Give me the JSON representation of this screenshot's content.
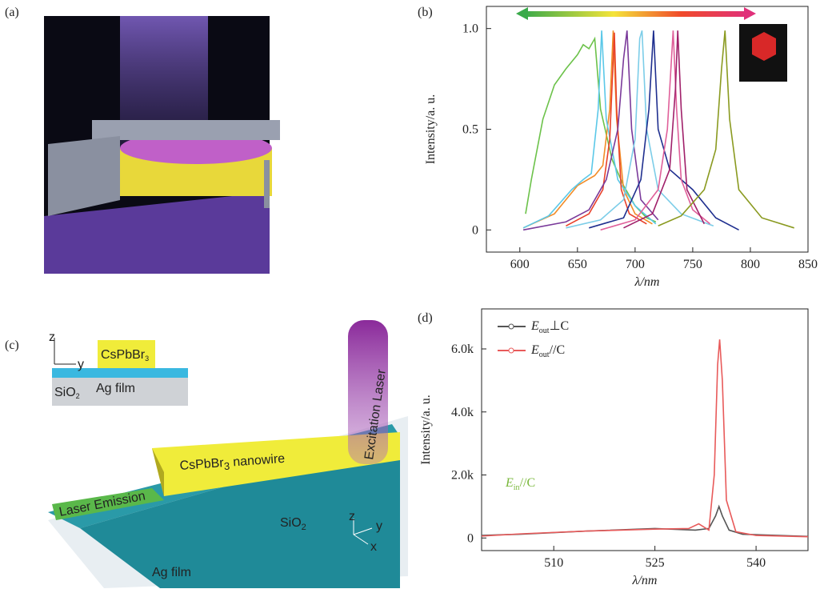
{
  "panel_labels": [
    "(a)",
    "(b)",
    "(c)",
    "(d)"
  ],
  "diagram_c": {
    "inset_material": [
      "CsPbBr",
      "3"
    ],
    "inset_axis_z": "z",
    "inset_axis_y": "y",
    "inset_sio2": [
      "SiO",
      "2"
    ],
    "inset_ag": "Ag film",
    "nanowire": [
      "CsPbBr",
      "3",
      " nanowire"
    ],
    "excitation": "Excitation Laser",
    "emission": "Laser Emission",
    "sio2": [
      "SiO",
      "2"
    ],
    "ag": "Ag film",
    "axis_z": "z",
    "axis_y": "y",
    "axis_x": "x"
  },
  "chart_data": [
    {
      "type": "line",
      "x_label": "λ/nm",
      "y_label": "Intensity/a. u.",
      "xlim": [
        571,
        850
      ],
      "ylim": [
        -0.11,
        1.11
      ],
      "xticks": [
        600,
        650,
        700,
        750,
        800,
        850
      ],
      "yticks": [
        0,
        0.5,
        {
          "value": 1,
          "label": "1.0"
        }
      ],
      "series": [
        {
          "color": "#6cc24a",
          "x": [
            605,
            610,
            620,
            630,
            640,
            650,
            655,
            660,
            665,
            670,
            680,
            690,
            700,
            710,
            718
          ],
          "values": [
            0.08,
            0.25,
            0.55,
            0.72,
            0.8,
            0.87,
            0.92,
            0.9,
            0.95,
            0.6,
            0.35,
            0.22,
            0.12,
            0.06,
            0.04
          ]
        },
        {
          "color": "#f28c28",
          "x": [
            603,
            630,
            650,
            665,
            672,
            678,
            681,
            684,
            690,
            700,
            715
          ],
          "values": [
            0.01,
            0.08,
            0.22,
            0.27,
            0.32,
            0.6,
            0.99,
            0.55,
            0.2,
            0.08,
            0.03
          ]
        },
        {
          "color": "#5bc8e8",
          "x": [
            603,
            625,
            645,
            655,
            662,
            668,
            671,
            675,
            685,
            700,
            718
          ],
          "values": [
            0.01,
            0.07,
            0.2,
            0.25,
            0.28,
            0.6,
            0.99,
            0.55,
            0.25,
            0.12,
            0.03
          ]
        },
        {
          "color": "#e8402a",
          "x": [
            640,
            660,
            672,
            678,
            682,
            684,
            688,
            695,
            710
          ],
          "values": [
            0.02,
            0.08,
            0.2,
            0.45,
            0.98,
            0.6,
            0.2,
            0.08,
            0.03
          ]
        },
        {
          "color": "#7a3a9a",
          "x": [
            603,
            640,
            660,
            675,
            685,
            690,
            693,
            697,
            705,
            720
          ],
          "values": [
            0,
            0.04,
            0.1,
            0.25,
            0.5,
            0.85,
            0.99,
            0.5,
            0.15,
            0.05
          ]
        },
        {
          "color": "#7ccde8",
          "x": [
            640,
            670,
            690,
            700,
            704,
            706,
            710,
            720,
            740,
            768
          ],
          "values": [
            0.01,
            0.05,
            0.15,
            0.45,
            0.95,
            0.99,
            0.5,
            0.2,
            0.08,
            0.02
          ]
        },
        {
          "color": "#1f2f8f",
          "x": [
            660,
            690,
            705,
            712,
            716,
            720,
            730,
            750,
            770,
            790
          ],
          "values": [
            0.01,
            0.06,
            0.25,
            0.6,
            0.99,
            0.5,
            0.3,
            0.2,
            0.06,
            0
          ]
        },
        {
          "color": "#e0609a",
          "x": [
            670,
            700,
            720,
            728,
            733,
            736,
            740,
            750,
            765
          ],
          "values": [
            0,
            0.05,
            0.2,
            0.5,
            0.99,
            0.6,
            0.25,
            0.1,
            0.03
          ]
        },
        {
          "color": "#a0206a",
          "x": [
            690,
            715,
            730,
            735,
            737,
            740,
            745,
            760
          ],
          "values": [
            0.01,
            0.08,
            0.3,
            0.7,
            0.99,
            0.6,
            0.2,
            0.03
          ]
        },
        {
          "color": "#8a9a20",
          "x": [
            720,
            740,
            760,
            770,
            775,
            778,
            782,
            790,
            810,
            838
          ],
          "values": [
            0.02,
            0.07,
            0.2,
            0.4,
            0.8,
            0.99,
            0.55,
            0.2,
            0.06,
            0.01
          ]
        }
      ]
    },
    {
      "type": "line",
      "x_label": "λ/nm",
      "y_label": "Intensity/a. u.",
      "xlim": [
        499.3,
        547.7
      ],
      "ylim": [
        -400,
        7270
      ],
      "xticks": [
        510,
        525,
        540
      ],
      "yticks": [
        0,
        {
          "value": 2000,
          "label": "2.0k"
        },
        {
          "value": 4000,
          "label": "4.0k"
        },
        {
          "value": 6000,
          "label": "6.0k"
        }
      ],
      "annotations": [
        {
          "text": [
            "E",
            "in",
            "//C"
          ],
          "color": "#7ab83c"
        }
      ],
      "series": [
        {
          "name": [
            "E",
            "out",
            "⊥C"
          ],
          "color": "#555555",
          "x": [
            499.3,
            505,
            515,
            525,
            531,
            533,
            534,
            534.5,
            535,
            536,
            538,
            547.7
          ],
          "values": [
            80,
            120,
            220,
            300,
            250,
            300,
            700,
            1000,
            700,
            250,
            120,
            50
          ]
        },
        {
          "name": [
            "E",
            "out",
            "//C"
          ],
          "color": "#e85a5a",
          "x": [
            499.3,
            505,
            515,
            525,
            530,
            531.5,
            533,
            533.8,
            534.3,
            534.6,
            535,
            535.6,
            537,
            540,
            547.7
          ],
          "values": [
            60,
            130,
            220,
            280,
            300,
            450,
            250,
            2000,
            5500,
            6300,
            5000,
            1200,
            200,
            80,
            40
          ]
        }
      ]
    }
  ]
}
